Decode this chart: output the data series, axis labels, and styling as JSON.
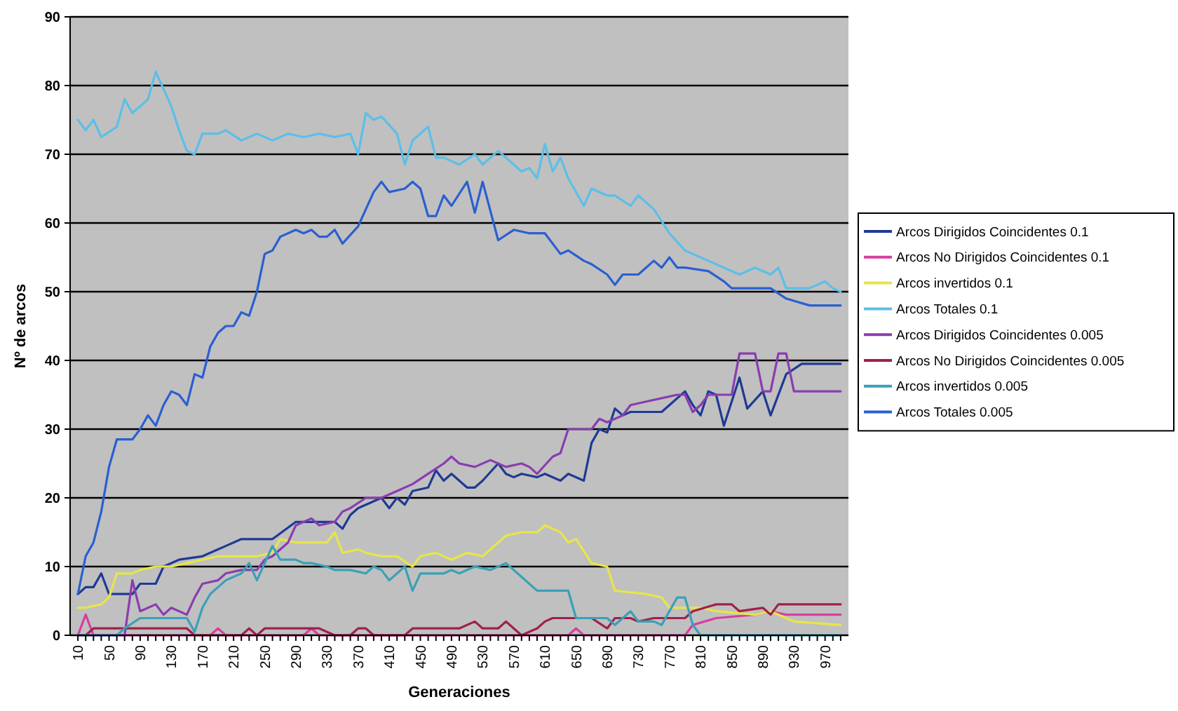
{
  "chart_data": {
    "type": "line",
    "xlabel": "Generaciones",
    "ylabel": "Nº de arcos",
    "xlim": [
      0,
      1000
    ],
    "ylim": [
      0,
      90
    ],
    "yticks": [
      0,
      10,
      20,
      30,
      40,
      50,
      60,
      70,
      80,
      90
    ],
    "grid": "y",
    "legend": "right",
    "line_style": "solid",
    "marker": "none",
    "xticks": [
      10,
      {
        "value": 20,
        "label": null
      },
      {
        "value": 30,
        "label": null
      },
      {
        "value": 40,
        "label": null
      },
      50,
      {
        "value": 60,
        "label": null
      },
      {
        "value": 70,
        "label": null
      },
      {
        "value": 80,
        "label": null
      },
      90,
      {
        "value": 100,
        "label": null
      },
      {
        "value": 110,
        "label": null
      },
      {
        "value": 120,
        "label": null
      },
      130,
      {
        "value": 140,
        "label": null
      },
      {
        "value": 150,
        "label": null
      },
      {
        "value": 160,
        "label": null
      },
      170,
      {
        "value": 180,
        "label": null
      },
      {
        "value": 190,
        "label": null
      },
      {
        "value": 200,
        "label": null
      },
      210,
      {
        "value": 220,
        "label": null
      },
      {
        "value": 230,
        "label": null
      },
      {
        "value": 240,
        "label": null
      },
      250,
      {
        "value": 260,
        "label": null
      },
      {
        "value": 270,
        "label": null
      },
      {
        "value": 280,
        "label": null
      },
      290,
      {
        "value": 300,
        "label": null
      },
      {
        "value": 310,
        "label": null
      },
      {
        "value": 320,
        "label": null
      },
      330,
      {
        "value": 340,
        "label": null
      },
      {
        "value": 350,
        "label": null
      },
      {
        "value": 360,
        "label": null
      },
      370,
      {
        "value": 380,
        "label": null
      },
      {
        "value": 390,
        "label": null
      },
      {
        "value": 400,
        "label": null
      },
      410,
      {
        "value": 420,
        "label": null
      },
      {
        "value": 430,
        "label": null
      },
      {
        "value": 440,
        "label": null
      },
      450,
      {
        "value": 460,
        "label": null
      },
      {
        "value": 470,
        "label": null
      },
      {
        "value": 480,
        "label": null
      },
      490,
      {
        "value": 500,
        "label": null
      },
      {
        "value": 510,
        "label": null
      },
      {
        "value": 520,
        "label": null
      },
      530,
      {
        "value": 540,
        "label": null
      },
      {
        "value": 550,
        "label": null
      },
      {
        "value": 560,
        "label": null
      },
      570,
      {
        "value": 580,
        "label": null
      },
      {
        "value": 590,
        "label": null
      },
      {
        "value": 600,
        "label": null
      },
      610,
      {
        "value": 620,
        "label": null
      },
      {
        "value": 630,
        "label": null
      },
      {
        "value": 640,
        "label": null
      },
      650,
      {
        "value": 660,
        "label": null
      },
      {
        "value": 670,
        "label": null
      },
      {
        "value": 680,
        "label": null
      },
      690,
      {
        "value": 700,
        "label": null
      },
      {
        "value": 710,
        "label": null
      },
      {
        "value": 720,
        "label": null
      },
      730,
      {
        "value": 740,
        "label": null
      },
      {
        "value": 750,
        "label": null
      },
      {
        "value": 760,
        "label": null
      },
      770,
      {
        "value": 780,
        "label": null
      },
      {
        "value": 790,
        "label": null
      },
      {
        "value": 800,
        "label": null
      },
      810,
      {
        "value": 820,
        "label": null
      },
      {
        "value": 830,
        "label": null
      },
      {
        "value": 840,
        "label": null
      },
      850,
      {
        "value": 860,
        "label": null
      },
      {
        "value": 870,
        "label": null
      },
      {
        "value": 880,
        "label": null
      },
      890,
      {
        "value": 900,
        "label": null
      },
      {
        "value": 910,
        "label": null
      },
      {
        "value": 920,
        "label": null
      },
      930,
      {
        "value": 940,
        "label": null
      },
      {
        "value": 950,
        "label": null
      },
      {
        "value": 960,
        "label": null
      },
      970,
      {
        "value": 980,
        "label": null
      },
      {
        "value": 990,
        "label": null
      }
    ],
    "series": [
      {
        "name": "Arcos Dirigidos Coincidentes 0.1",
        "color": "#1f3a93",
        "x": [
          10,
          20,
          30,
          40,
          50,
          80,
          90,
          110,
          120,
          140,
          170,
          190,
          200,
          220,
          260,
          290,
          340,
          350,
          360,
          370,
          400,
          410,
          420,
          430,
          440,
          460,
          470,
          480,
          490,
          510,
          520,
          530,
          550,
          560,
          570,
          580,
          600,
          610,
          630,
          640,
          660,
          670,
          680,
          690,
          700,
          710,
          720,
          760,
          770,
          790,
          800,
          810,
          820,
          830,
          840,
          860,
          870,
          890,
          900,
          920,
          940,
          990
        ],
        "values": [
          6,
          7,
          7,
          9,
          6,
          6,
          7.5,
          7.5,
          10,
          11,
          11.5,
          12.5,
          13,
          14,
          14,
          16.5,
          16.5,
          15.5,
          17.5,
          18.5,
          20,
          18.5,
          20,
          19,
          21,
          21.5,
          24,
          22.5,
          23.5,
          21.5,
          21.5,
          22.5,
          25,
          23.5,
          23,
          23.5,
          23,
          23.5,
          22.5,
          23.5,
          22.5,
          28,
          30,
          29.5,
          33,
          32,
          32.5,
          32.5,
          33.5,
          35.5,
          33.5,
          32,
          35.5,
          35,
          30.5,
          37.5,
          33,
          35.5,
          32,
          38,
          39.5,
          39.5
        ]
      },
      {
        "name": "Arcos No Dirigidos Coincidentes 0.1",
        "color": "#d63fa0",
        "x": [
          10,
          20,
          30,
          180,
          190,
          200,
          300,
          310,
          320,
          640,
          650,
          660,
          790,
          800,
          830,
          880,
          900,
          920,
          950,
          990
        ],
        "values": [
          0,
          3,
          0,
          0,
          1,
          0,
          0,
          1,
          0,
          0,
          1,
          0,
          0,
          1.5,
          2.5,
          3,
          3.5,
          3,
          3,
          3
        ]
      },
      {
        "name": "Arcos invertidos 0.1",
        "color": "#e6e64a",
        "x": [
          10,
          20,
          40,
          50,
          60,
          80,
          90,
          110,
          130,
          150,
          190,
          240,
          260,
          270,
          290,
          330,
          340,
          350,
          370,
          380,
          400,
          420,
          440,
          450,
          470,
          490,
          510,
          530,
          540,
          560,
          580,
          600,
          610,
          630,
          640,
          650,
          670,
          690,
          700,
          740,
          760,
          770,
          810,
          830,
          880,
          900,
          930,
          990
        ],
        "values": [
          4,
          4,
          4.5,
          5.5,
          9,
          9,
          9.5,
          10,
          10,
          10.5,
          11.5,
          11.5,
          12,
          14,
          13.5,
          13.5,
          15,
          12,
          12.5,
          12,
          11.5,
          11.5,
          10,
          11.5,
          12,
          11,
          12,
          11.5,
          12.5,
          14.5,
          15,
          15,
          16,
          15,
          13.5,
          14,
          10.5,
          10,
          6.5,
          6,
          5.5,
          4,
          4,
          3.5,
          3,
          3.5,
          2,
          1.5
        ]
      },
      {
        "name": "Arcos Totales 0.1",
        "color": "#5bbfe8",
        "x": [
          10,
          20,
          30,
          40,
          60,
          70,
          80,
          100,
          110,
          130,
          140,
          150,
          160,
          170,
          190,
          200,
          220,
          240,
          260,
          280,
          300,
          320,
          340,
          360,
          370,
          380,
          390,
          400,
          420,
          430,
          440,
          460,
          470,
          480,
          500,
          520,
          530,
          550,
          570,
          580,
          590,
          600,
          610,
          620,
          630,
          640,
          660,
          670,
          690,
          700,
          720,
          730,
          750,
          770,
          790,
          820,
          840,
          860,
          880,
          900,
          910,
          920,
          950,
          970,
          980,
          990
        ],
        "values": [
          75,
          73.5,
          75,
          72.5,
          74,
          78,
          76,
          78,
          82,
          77,
          73.5,
          70.5,
          70,
          73,
          73,
          73.5,
          72,
          73,
          72,
          73,
          72.5,
          73,
          72.5,
          73,
          70,
          76,
          75,
          75.5,
          73,
          68.5,
          72,
          74,
          69.5,
          69.5,
          68.5,
          70,
          68.5,
          70.5,
          68.5,
          67.5,
          68,
          66.5,
          71.5,
          67.5,
          69.5,
          66.5,
          62.5,
          65,
          64,
          64,
          62.5,
          64,
          62,
          58.5,
          56,
          54.5,
          53.5,
          52.5,
          53.5,
          52.5,
          53.5,
          50.5,
          50.5,
          51.5,
          50.5,
          50
        ]
      },
      {
        "name": "Arcos Dirigidos Coincidentes 0.005",
        "color": "#8a3cb0",
        "x": [
          10,
          70,
          80,
          90,
          110,
          120,
          130,
          150,
          160,
          170,
          190,
          200,
          220,
          240,
          250,
          260,
          270,
          280,
          290,
          310,
          320,
          340,
          350,
          360,
          380,
          400,
          420,
          440,
          460,
          480,
          490,
          500,
          520,
          540,
          560,
          580,
          590,
          600,
          620,
          630,
          640,
          670,
          680,
          690,
          710,
          720,
          740,
          760,
          780,
          790,
          800,
          810,
          820,
          850,
          860,
          880,
          890,
          900,
          910,
          920,
          930,
          990
        ],
        "values": [
          0,
          0,
          8,
          3.5,
          4.5,
          3,
          4,
          3,
          5.5,
          7.5,
          8,
          9,
          9.5,
          9.5,
          11,
          11.5,
          12.5,
          13.5,
          16,
          17,
          16,
          16.5,
          18,
          18.5,
          20,
          20,
          21,
          22,
          23.5,
          25,
          26,
          25,
          24.5,
          25.5,
          24.5,
          25,
          24.5,
          23.5,
          26,
          26.5,
          30,
          30,
          31.5,
          31,
          32,
          33.5,
          34,
          34.5,
          35,
          35,
          32.5,
          33.5,
          35,
          35,
          41,
          41,
          35.5,
          35.5,
          41,
          41,
          35.5,
          35.5
        ]
      },
      {
        "name": "Arcos No Dirigidos Coincidentes 0.005",
        "color": "#a0204a",
        "x": [
          10,
          20,
          30,
          150,
          160,
          220,
          230,
          240,
          250,
          320,
          340,
          360,
          370,
          380,
          390,
          430,
          440,
          500,
          520,
          530,
          550,
          560,
          570,
          580,
          600,
          610,
          620,
          670,
          690,
          700,
          720,
          730,
          750,
          790,
          800,
          830,
          850,
          860,
          890,
          900,
          910,
          990
        ],
        "values": [
          0,
          0,
          1,
          1,
          0,
          0,
          1,
          0,
          1,
          1,
          0,
          0,
          1,
          1,
          0,
          0,
          1,
          1,
          2,
          1,
          1,
          2,
          1,
          0,
          1,
          2,
          2.5,
          2.5,
          1,
          2.5,
          2.5,
          2,
          2.5,
          2.5,
          3.5,
          4.5,
          4.5,
          3.5,
          4,
          3,
          4.5,
          4.5
        ]
      },
      {
        "name": "Arcos invertidos 0.005",
        "color": "#3aa0b8",
        "x": [
          10,
          60,
          70,
          90,
          150,
          160,
          170,
          180,
          190,
          200,
          220,
          230,
          240,
          250,
          260,
          270,
          290,
          300,
          310,
          330,
          340,
          360,
          380,
          390,
          400,
          410,
          430,
          440,
          450,
          480,
          490,
          500,
          520,
          540,
          560,
          570,
          580,
          600,
          620,
          640,
          650,
          690,
          700,
          720,
          730,
          750,
          760,
          780,
          790,
          800,
          810,
          990
        ],
        "values": [
          0,
          0,
          1,
          2.5,
          2.5,
          0.5,
          4,
          6,
          7,
          8,
          9,
          10.5,
          8,
          10.5,
          13,
          11,
          11,
          10.5,
          10.5,
          10,
          9.5,
          9.5,
          9,
          10,
          9.5,
          8,
          10,
          6.5,
          9,
          9,
          9.5,
          9,
          10,
          9.5,
          10.5,
          9.5,
          8.5,
          6.5,
          6.5,
          6.5,
          2.5,
          2.5,
          1.5,
          3.5,
          2,
          2,
          1.5,
          5.5,
          5.5,
          1.5,
          0,
          0
        ]
      },
      {
        "name": "Arcos Totales 0.005",
        "color": "#2a5fd0",
        "x": [
          10,
          20,
          30,
          40,
          50,
          60,
          70,
          80,
          90,
          100,
          110,
          120,
          130,
          140,
          150,
          160,
          170,
          180,
          190,
          200,
          210,
          220,
          230,
          240,
          250,
          260,
          270,
          290,
          300,
          310,
          320,
          330,
          340,
          350,
          370,
          390,
          400,
          410,
          430,
          440,
          450,
          460,
          470,
          480,
          490,
          510,
          520,
          530,
          550,
          570,
          590,
          610,
          630,
          640,
          660,
          670,
          690,
          700,
          710,
          730,
          740,
          750,
          760,
          770,
          780,
          790,
          820,
          840,
          850,
          900,
          920,
          950,
          990
        ],
        "values": [
          6,
          11.5,
          13.5,
          18,
          24.5,
          28.5,
          28.5,
          28.5,
          30,
          32,
          30.5,
          33.5,
          35.5,
          35,
          33.5,
          38,
          37.5,
          42,
          44,
          45,
          45,
          47,
          46.5,
          50,
          55.5,
          56,
          58,
          59,
          58.5,
          59,
          58,
          58,
          59,
          57,
          59.5,
          64.5,
          66,
          64.5,
          65,
          66,
          65,
          61,
          61,
          64,
          62.5,
          66,
          61.5,
          66,
          57.5,
          59,
          58.5,
          58.5,
          55.5,
          56,
          54.5,
          54,
          52.5,
          51,
          52.5,
          52.5,
          53.5,
          54.5,
          53.5,
          55,
          53.5,
          53.5,
          53,
          51.5,
          50.5,
          50.5,
          49,
          48,
          48
        ]
      }
    ]
  }
}
